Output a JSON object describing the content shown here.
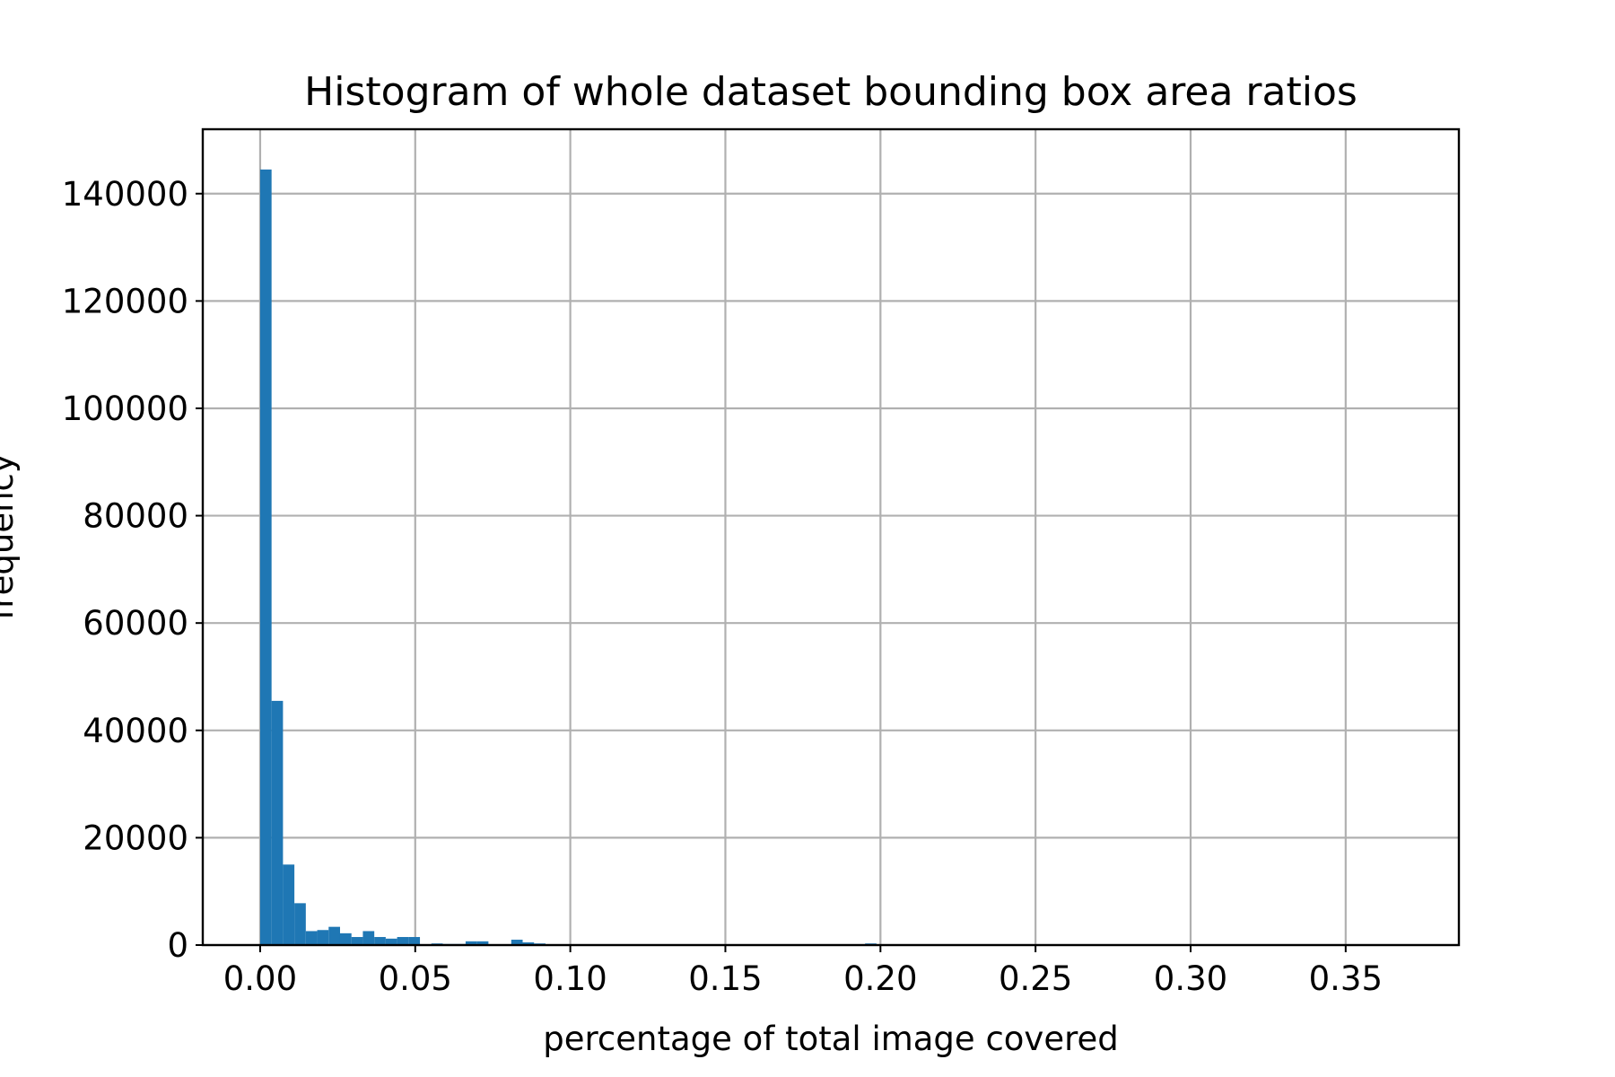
{
  "chart_data": {
    "type": "bar",
    "title": "Histogram of whole dataset bounding box area ratios",
    "xlabel": "percentage of total image covered",
    "ylabel": "frequency",
    "xlim": [
      -0.0185,
      0.3865
    ],
    "ylim": [
      0,
      152000
    ],
    "xticks": [
      0.0,
      0.05,
      0.1,
      0.15,
      0.2,
      0.25,
      0.3,
      0.35
    ],
    "xtick_labels": [
      "0.00",
      "0.05",
      "0.10",
      "0.15",
      "0.20",
      "0.25",
      "0.30",
      "0.35"
    ],
    "yticks": [
      0,
      20000,
      40000,
      60000,
      80000,
      100000,
      120000,
      140000
    ],
    "ytick_labels": [
      "0",
      "20000",
      "40000",
      "60000",
      "80000",
      "100000",
      "120000",
      "140000"
    ],
    "grid": true,
    "color": "#1f77b4",
    "bin_width": 0.00368,
    "bin_start": 0.0,
    "values": [
      144500,
      45500,
      15000,
      7800,
      2600,
      2800,
      3400,
      2200,
      1500,
      2600,
      1500,
      1200,
      1500,
      1500,
      0,
      300,
      200,
      200,
      700,
      700,
      0,
      0,
      1000,
      500,
      300,
      0,
      0,
      0,
      0,
      0,
      0,
      0,
      0,
      0,
      0,
      0,
      0,
      0,
      0,
      0,
      0,
      0,
      0,
      0,
      0,
      0,
      0,
      0,
      0,
      0,
      0,
      0,
      0,
      300,
      0,
      0,
      0,
      0,
      0,
      0,
      0,
      0,
      0,
      0,
      0,
      0,
      0,
      0,
      0,
      0,
      0,
      0,
      0,
      0,
      0,
      0,
      0,
      0,
      0,
      0,
      0,
      0,
      0,
      0,
      0,
      0,
      0,
      0,
      0,
      0,
      0,
      0,
      0,
      0,
      0,
      0,
      0,
      0,
      0,
      0
    ]
  }
}
